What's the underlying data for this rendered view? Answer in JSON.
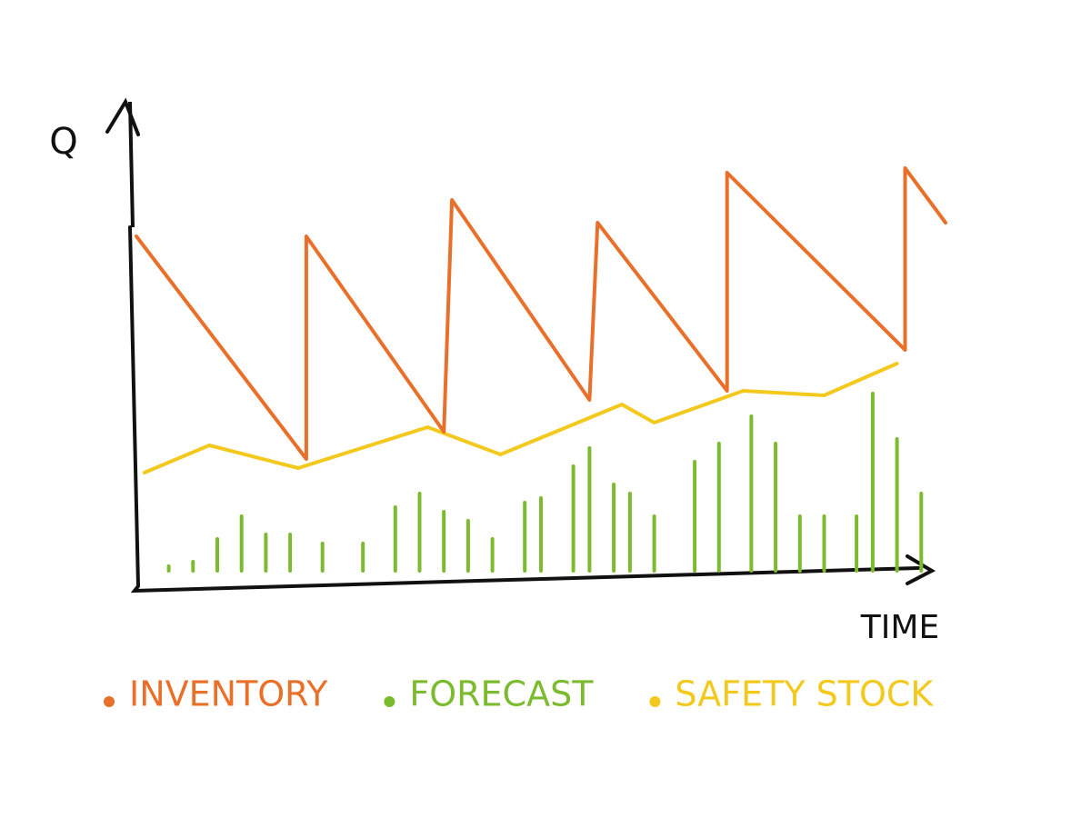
{
  "chart_data": {
    "type": "line",
    "y_label": "Q",
    "x_label": "TIME",
    "xlim": [
      0,
      100
    ],
    "ylim": [
      0,
      100
    ],
    "series": [
      {
        "name": "INVENTORY",
        "type": "line",
        "color": "#e8702a",
        "x": [
          0,
          21,
          21,
          38,
          39,
          56,
          57,
          73,
          73,
          95,
          95,
          100
        ],
        "values": [
          74,
          25,
          74,
          31,
          82,
          38,
          77,
          40,
          88,
          49,
          89,
          77
        ]
      },
      {
        "name": "FORECAST",
        "type": "bar",
        "color": "#7cbb2f",
        "x": [
          4,
          7,
          10,
          13,
          16,
          19,
          23,
          28,
          32,
          35,
          38,
          41,
          44,
          48,
          50,
          54,
          56,
          59,
          61,
          64,
          69,
          72,
          76,
          79,
          82,
          85,
          89,
          91,
          94,
          97
        ],
        "values": [
          1,
          2,
          7,
          12,
          8,
          8,
          6,
          6,
          14,
          17,
          13,
          11,
          7,
          15,
          16,
          23,
          27,
          19,
          17,
          12,
          24,
          28,
          34,
          28,
          12,
          12,
          12,
          39,
          29,
          17
        ]
      },
      {
        "name": "SAFETY STOCK",
        "type": "line",
        "color": "#f2c91c",
        "x": [
          1,
          9,
          20,
          36,
          45,
          60,
          64,
          75,
          85,
          94
        ],
        "values": [
          22,
          28,
          23,
          32,
          26,
          37,
          33,
          40,
          39,
          46
        ]
      }
    ]
  }
}
